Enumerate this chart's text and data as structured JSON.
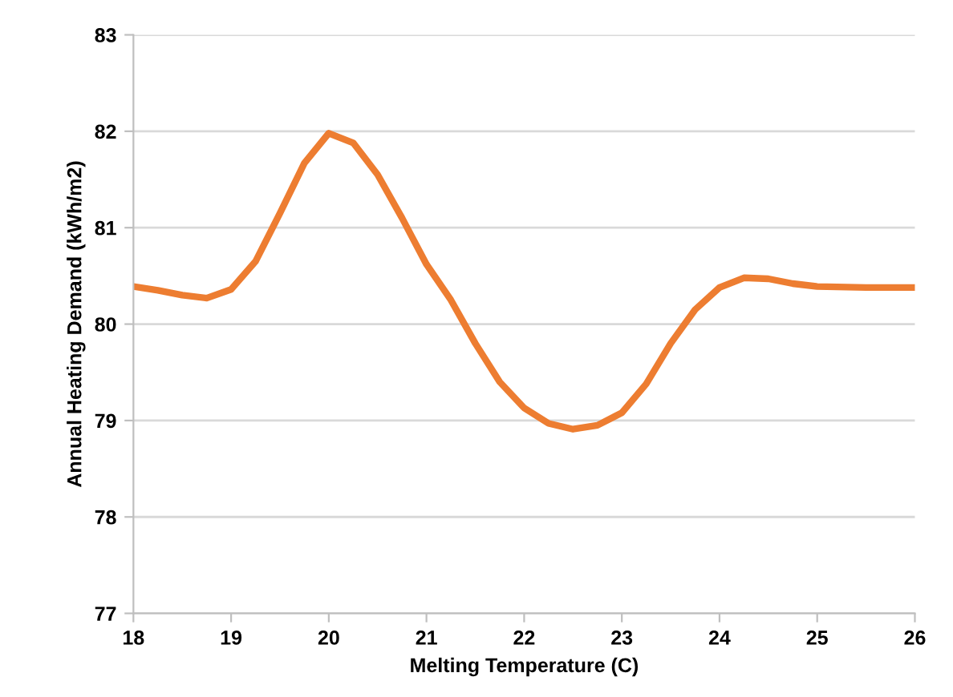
{
  "chart_data": {
    "type": "line",
    "xlabel": "Melting Temperature (C)",
    "ylabel": "Annual Heating Demand (kWh/m2)",
    "x": [
      18,
      18.25,
      18.5,
      18.75,
      19,
      19.25,
      19.5,
      19.75,
      20,
      20.25,
      20.5,
      20.75,
      21,
      21.25,
      21.5,
      21.75,
      22,
      22.25,
      22.5,
      22.75,
      23,
      23.25,
      23.5,
      23.75,
      24,
      24.25,
      24.5,
      24.75,
      25,
      25.5,
      26
    ],
    "series": [
      {
        "color": "#ed7d31",
        "values": [
          80.39,
          80.35,
          80.3,
          80.27,
          80.36,
          80.65,
          81.15,
          81.67,
          81.98,
          81.88,
          81.55,
          81.1,
          80.62,
          80.25,
          79.8,
          79.4,
          79.13,
          78.97,
          78.91,
          78.95,
          79.08,
          79.38,
          79.8,
          80.15,
          80.38,
          80.48,
          80.47,
          80.42,
          80.39,
          80.38,
          80.38
        ]
      }
    ],
    "xlim": [
      18,
      26
    ],
    "xticks": [
      18,
      19,
      20,
      21,
      22,
      23,
      24,
      25,
      26
    ],
    "ylim": [
      77,
      83
    ],
    "yticks": [
      77,
      78,
      79,
      80,
      81,
      82,
      83
    ],
    "grid": "y",
    "marker": "none",
    "line_style": "solid"
  }
}
